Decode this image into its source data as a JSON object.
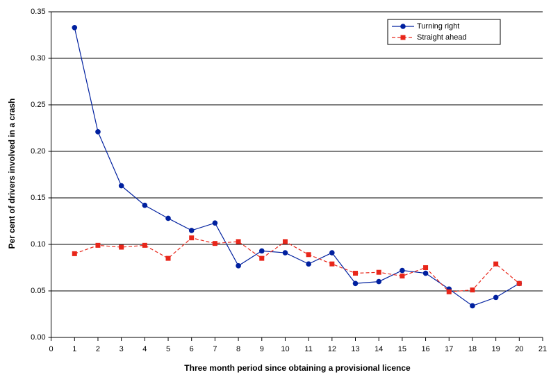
{
  "chart_data": {
    "type": "line",
    "xlabel": "Three month period since obtaining a provisional licence",
    "ylabel": "Per cent of drivers involved in a crash",
    "x": [
      1,
      2,
      3,
      4,
      5,
      6,
      7,
      8,
      9,
      10,
      11,
      12,
      13,
      14,
      15,
      16,
      17,
      18,
      19,
      20
    ],
    "series": [
      {
        "name": "Turning right",
        "color": "#00209f",
        "marker": "circle",
        "dashed": false,
        "values": [
          0.333,
          0.221,
          0.163,
          0.142,
          0.128,
          0.115,
          0.123,
          0.077,
          0.093,
          0.091,
          0.079,
          0.091,
          0.058,
          0.06,
          0.072,
          0.069,
          0.052,
          0.034,
          0.043,
          0.058
        ]
      },
      {
        "name": "Straight ahead",
        "color": "#e8261a",
        "marker": "square",
        "dashed": true,
        "values": [
          0.09,
          0.099,
          0.097,
          0.099,
          0.085,
          0.107,
          0.101,
          0.103,
          0.085,
          0.103,
          0.089,
          0.079,
          0.069,
          0.07,
          0.066,
          0.075,
          0.049,
          0.051,
          0.079,
          0.058
        ]
      }
    ],
    "xlim": [
      0,
      21
    ],
    "xticks": [
      0,
      1,
      2,
      3,
      4,
      5,
      6,
      7,
      8,
      9,
      10,
      11,
      12,
      13,
      14,
      15,
      16,
      17,
      18,
      19,
      20,
      21
    ],
    "ylim": [
      0,
      0.35
    ],
    "yticks": [
      {
        "value": 0,
        "label": "0.00"
      },
      {
        "value": 0.05,
        "label": "0.05"
      },
      {
        "value": 0.1,
        "label": "0.10"
      },
      {
        "value": 0.15,
        "label": "0.15"
      },
      {
        "value": 0.2,
        "label": "0.20"
      },
      {
        "value": 0.25,
        "label": "0.25"
      },
      {
        "value": 0.3,
        "label": "0.30"
      },
      {
        "value": 0.35,
        "label": "0.35"
      }
    ],
    "grid": true,
    "legend": "upper right"
  }
}
